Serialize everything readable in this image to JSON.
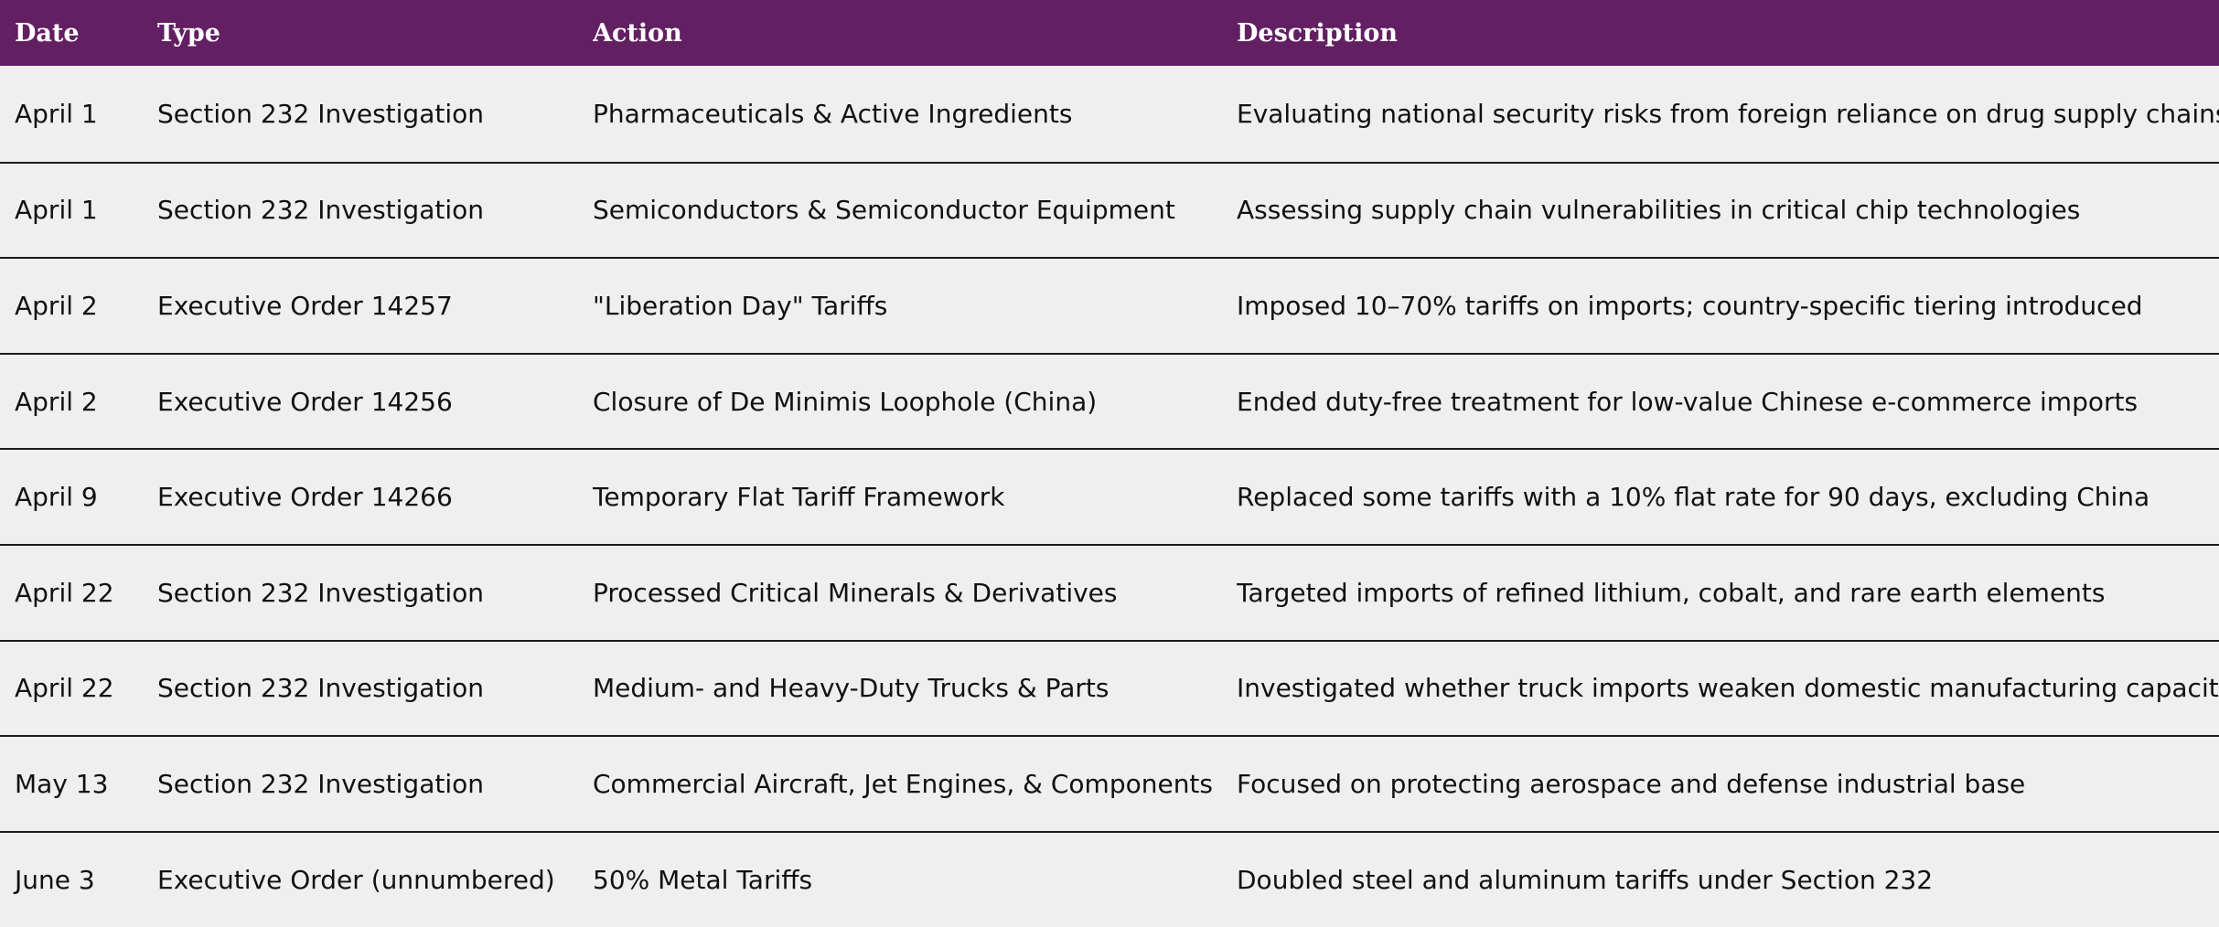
{
  "table": {
    "headers": {
      "date": "Date",
      "type": "Type",
      "action": "Action",
      "description": "Description"
    },
    "rows": [
      {
        "date": "April 1",
        "type": "Section 232 Investigation",
        "action": "Pharmaceuticals & Active Ingredients",
        "description": "Evaluating national security risks from foreign reliance on drug supply chains"
      },
      {
        "date": "April 1",
        "type": "Section 232 Investigation",
        "action": "Semiconductors & Semiconductor Equipment",
        "description": "Assessing supply chain vulnerabilities in critical chip technologies"
      },
      {
        "date": "April 2",
        "type": "Executive Order 14257",
        "action": "\"Liberation Day\" Tariffs",
        "description": "Imposed 10–70% tariffs on imports; country-specific tiering introduced"
      },
      {
        "date": "April 2",
        "type": "Executive Order 14256",
        "action": "Closure of De Minimis Loophole (China)",
        "description": "Ended duty-free treatment for low-value Chinese e-commerce imports"
      },
      {
        "date": "April 9",
        "type": "Executive Order 14266",
        "action": "Temporary Flat Tariff Framework",
        "description": "Replaced some tariffs with a 10% flat rate for 90 days, excluding China"
      },
      {
        "date": "April 22",
        "type": "Section 232 Investigation",
        "action": "Processed Critical Minerals & Derivatives",
        "description": "Targeted imports of refined lithium, cobalt, and rare earth elements"
      },
      {
        "date": "April 22",
        "type": "Section 232 Investigation",
        "action": "Medium- and Heavy-Duty Trucks & Parts",
        "description": "Investigated whether truck imports weaken domestic manufacturing capacity"
      },
      {
        "date": "May 13",
        "type": "Section 232 Investigation",
        "action": "Commercial Aircraft, Jet Engines, & Components",
        "description": "Focused on protecting aerospace and defense industrial base"
      },
      {
        "date": "June 3",
        "type": "Executive Order (unnumbered)",
        "action": "50% Metal Tariffs",
        "description": "Doubled steel and aluminum tariffs under Section 232"
      }
    ]
  },
  "colors": {
    "header_bg": "#621f62",
    "header_text": "#ffffff",
    "row_bg": "#efefef",
    "divider": "#1a1a1a"
  }
}
